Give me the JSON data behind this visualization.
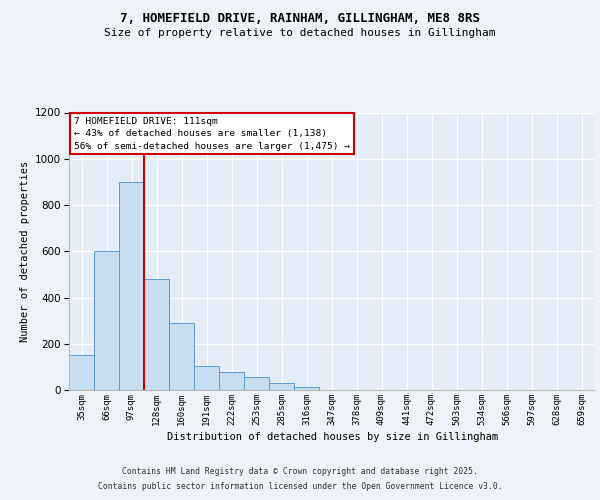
{
  "title": "7, HOMEFIELD DRIVE, RAINHAM, GILLINGHAM, ME8 8RS",
  "subtitle": "Size of property relative to detached houses in Gillingham",
  "xlabel": "Distribution of detached houses by size in Gillingham",
  "ylabel": "Number of detached properties",
  "bar_color": "#c8ddf0",
  "bar_edge_color": "#5b9bd5",
  "background_color": "#edf2f9",
  "plot_bg_color": "#e4ecf7",
  "grid_color": "#ffffff",
  "vline_color": "#cc0000",
  "categories": [
    "35sqm",
    "66sqm",
    "97sqm",
    "128sqm",
    "160sqm",
    "191sqm",
    "222sqm",
    "253sqm",
    "285sqm",
    "316sqm",
    "347sqm",
    "378sqm",
    "409sqm",
    "441sqm",
    "472sqm",
    "503sqm",
    "534sqm",
    "566sqm",
    "597sqm",
    "628sqm",
    "659sqm"
  ],
  "values": [
    150,
    600,
    900,
    480,
    290,
    105,
    80,
    55,
    30,
    15,
    0,
    0,
    0,
    0,
    0,
    0,
    0,
    0,
    0,
    0,
    0
  ],
  "vline_x_idx": 2.5,
  "annotation_title": "7 HOMEFIELD DRIVE: 111sqm",
  "annotation_line1": "← 43% of detached houses are smaller (1,138)",
  "annotation_line2": "56% of semi-detached houses are larger (1,475) →",
  "ylim": [
    0,
    1200
  ],
  "yticks": [
    0,
    200,
    400,
    600,
    800,
    1000,
    1200
  ],
  "footnote1": "Contains HM Land Registry data © Crown copyright and database right 2025.",
  "footnote2": "Contains public sector information licensed under the Open Government Licence v3.0."
}
